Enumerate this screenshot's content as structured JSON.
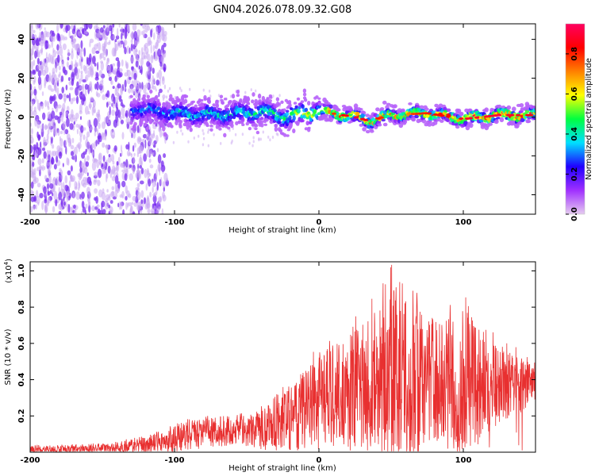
{
  "title": "GN04.2026.078.09.32.G08",
  "chart_data": [
    {
      "type": "heatmap",
      "title": "GN04.2026.078.09.32.G08",
      "xlabel": "Height of straight line (km)",
      "ylabel": "Frequency (Hz)",
      "xlim": [
        -200,
        150
      ],
      "ylim": [
        -50,
        48
      ],
      "xticks": [
        -200,
        -100,
        0,
        100
      ],
      "yticks": [
        -40,
        -20,
        0,
        20,
        40
      ],
      "colorbar": {
        "label": "Normalized spectral amplitude",
        "range": [
          0.0,
          0.95
        ],
        "ticks": [
          "0.0",
          "0.2",
          "0.4",
          "0.6",
          "0.8"
        ],
        "tick_values": [
          0.0,
          0.2,
          0.4,
          0.6,
          0.8
        ],
        "colormap": [
          "#e6ccf0",
          "#a030ff",
          "#2000ff",
          "#00e0ff",
          "#00ff40",
          "#ffff00",
          "#ff8000",
          "#ff0000",
          "#ff0060"
        ]
      },
      "ridge": {
        "description": "dominant spectral ridge near 0 Hz",
        "x": [
          -125,
          -100,
          -75,
          -50,
          -40,
          -25,
          0,
          25,
          35,
          50,
          75,
          100,
          125,
          150
        ],
        "center_hz": [
          4,
          2,
          1,
          2,
          3,
          0,
          3,
          0,
          -2,
          1,
          2,
          -1,
          1,
          1
        ],
        "peak_amplitude": [
          0.35,
          0.4,
          0.45,
          0.45,
          0.5,
          0.5,
          0.7,
          0.9,
          0.85,
          0.75,
          0.8,
          0.88,
          0.9,
          0.85
        ]
      },
      "noise_region": {
        "x_from": -200,
        "x_to": -115,
        "amplitude": 0.1
      }
    },
    {
      "type": "line",
      "xlabel": "Height of straight line (km)",
      "ylabel": "SNR (10 * v/v)",
      "scale_label": "(x10",
      "scale_exponent": "4",
      "xlim": [
        -200,
        150
      ],
      "ylim": [
        0,
        1.05
      ],
      "xticks": [
        -200,
        -100,
        0,
        100
      ],
      "yticks": [
        0.2,
        0.4,
        0.6,
        0.8,
        1.0
      ],
      "ytick_labels": [
        "0.2",
        "0.4",
        "0.6",
        "0.8",
        "1.0"
      ],
      "color": "#e83030",
      "envelope": {
        "x": [
          -200,
          -150,
          -120,
          -100,
          -80,
          -60,
          -40,
          -20,
          0,
          20,
          40,
          50,
          60,
          80,
          100,
          120,
          150
        ],
        "mean": [
          0.01,
          0.02,
          0.04,
          0.07,
          0.11,
          0.11,
          0.12,
          0.17,
          0.3,
          0.34,
          0.4,
          0.42,
          0.4,
          0.38,
          0.38,
          0.37,
          0.37
        ],
        "peak": [
          0.04,
          0.05,
          0.09,
          0.16,
          0.22,
          0.2,
          0.26,
          0.4,
          0.6,
          0.72,
          0.88,
          1.05,
          0.95,
          0.8,
          0.9,
          0.68,
          0.5
        ]
      }
    }
  ]
}
